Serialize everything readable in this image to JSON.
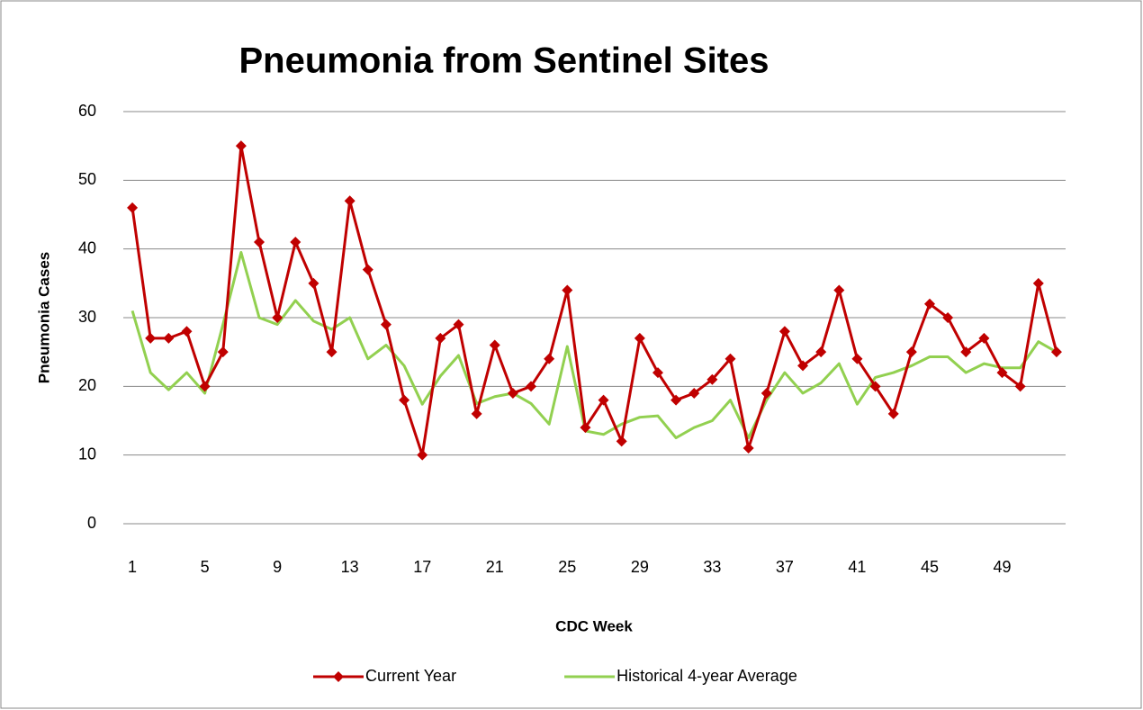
{
  "chart_data": {
    "type": "line",
    "title": "Pneumonia from Sentinel Sites",
    "x_label": "CDC Week",
    "y_label": "Pneumonia Cases",
    "categories": [
      "1",
      null,
      null,
      null,
      "5",
      null,
      null,
      null,
      "9",
      null,
      null,
      null,
      "13",
      null,
      null,
      null,
      "17",
      null,
      null,
      null,
      "21",
      null,
      null,
      null,
      "25",
      null,
      null,
      null,
      "29",
      null,
      null,
      null,
      "33",
      null,
      null,
      null,
      "37",
      null,
      null,
      null,
      "41",
      null,
      null,
      null,
      "45",
      null,
      null,
      null,
      "49",
      null,
      null,
      null
    ],
    "series": [
      {
        "name": "Current Year",
        "color": "#c00000",
        "marker": "diamond",
        "values": [
          46,
          27,
          27,
          28,
          20,
          25,
          55,
          41,
          30,
          41,
          35,
          25,
          47,
          37,
          29,
          18,
          10,
          27,
          29,
          16,
          26,
          19,
          20,
          24,
          34,
          14,
          18,
          12,
          27,
          22,
          18,
          19,
          21,
          24,
          11,
          19,
          28,
          23,
          25,
          34,
          24,
          20,
          16,
          25,
          32,
          30,
          25,
          27,
          22,
          20,
          35,
          25
        ]
      },
      {
        "name": "Historical 4-year Average",
        "color": "#92d050",
        "values": [
          31,
          22,
          19.5,
          22,
          19,
          29,
          39.5,
          30,
          29,
          32.5,
          29.5,
          28.3,
          30,
          24,
          26,
          23,
          17.4,
          21.5,
          24.5,
          17.5,
          18.5,
          19,
          17.5,
          14.5,
          25.8,
          13.5,
          13,
          14.5,
          15.5,
          15.7,
          12.5,
          14,
          15,
          18,
          12.5,
          18,
          22,
          19,
          20.5,
          23.3,
          17.4,
          21.3,
          22,
          23,
          24.3,
          24.3,
          22,
          23.3,
          22.7,
          22.7,
          26.5,
          25
        ]
      }
    ],
    "ylim": [
      0,
      60
    ],
    "yticks": [
      0,
      10,
      20,
      30,
      40,
      50,
      60
    ],
    "grid": true,
    "legend": "bottom"
  }
}
